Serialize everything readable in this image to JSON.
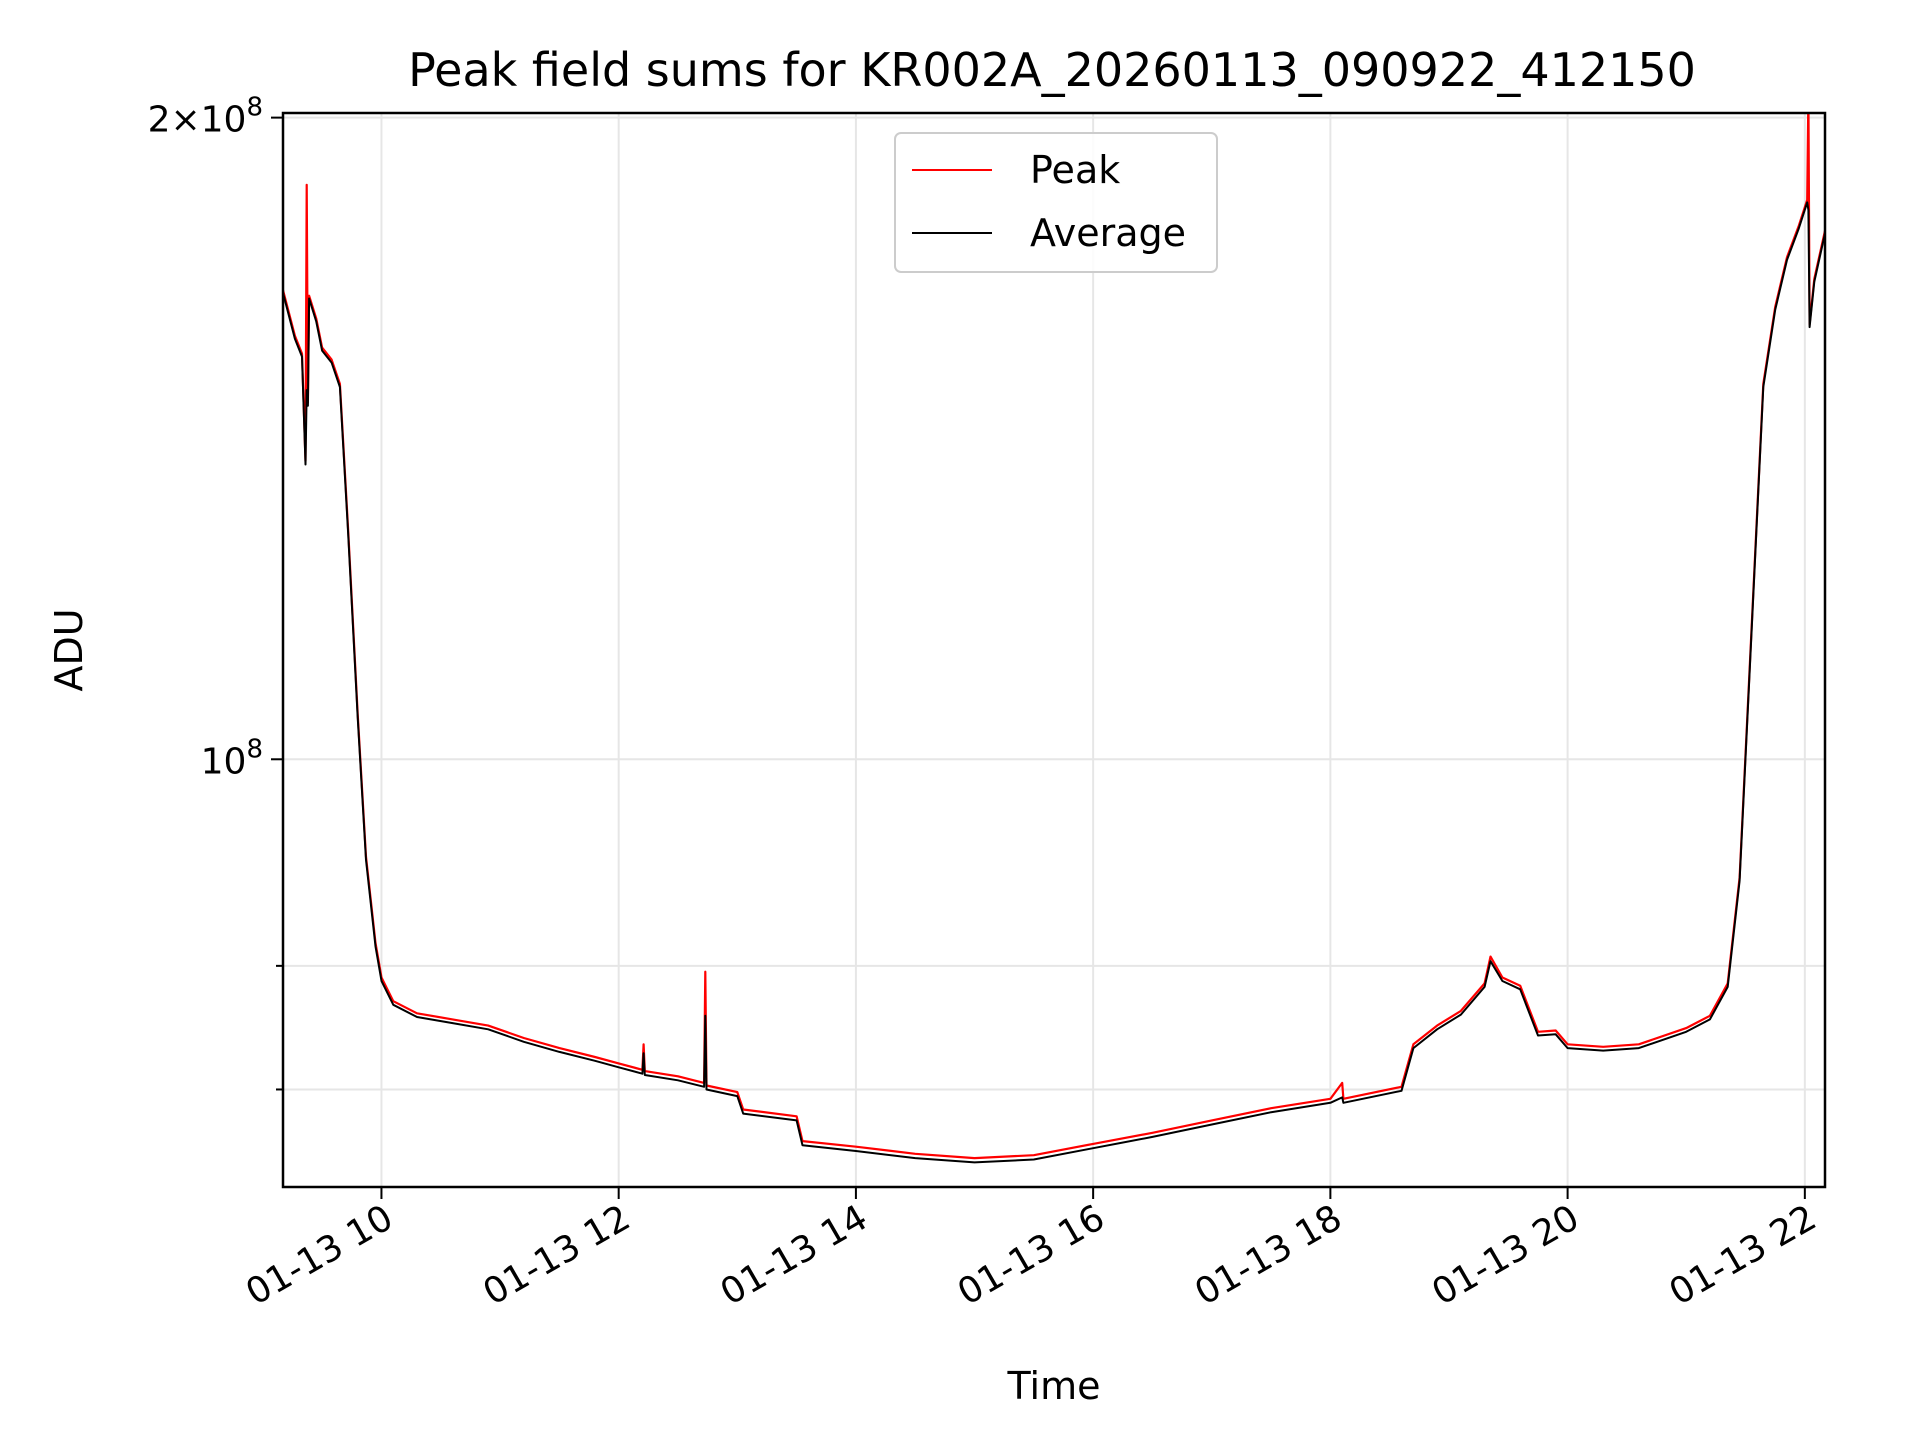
{
  "chart_data": {
    "type": "line",
    "title": "Peak field sums for KR002A_20260113_090922_412150",
    "xlabel": "Time",
    "ylabel": "ADU",
    "yscale": "log",
    "x_unit": "hours since 01-13 00:00",
    "xlim": [
      9.17,
      22.17
    ],
    "ylim": [
      63000000,
      201000000
    ],
    "x_ticks": [
      10,
      12,
      14,
      16,
      18,
      20,
      22
    ],
    "x_tick_labels": [
      "01-13 10",
      "01-13 12",
      "01-13 14",
      "01-13 16",
      "01-13 18",
      "01-13 20",
      "01-13 22"
    ],
    "y_major_ticks": [
      100000000,
      200000000
    ],
    "y_major_tick_labels": [
      "10^8",
      "2×10^8"
    ],
    "y_minor_ticks": [
      70000000,
      80000000
    ],
    "grid": true,
    "legend_position": "top-center",
    "series": [
      {
        "name": "Peak",
        "color": "#ff0000",
        "points": [
          [
            9.17,
            166000000
          ],
          [
            9.27,
            158000000
          ],
          [
            9.33,
            155000000
          ],
          [
            9.36,
            138000000
          ],
          [
            9.37,
            186000000
          ],
          [
            9.38,
            147000000
          ],
          [
            9.39,
            165000000
          ],
          [
            9.45,
            161000000
          ],
          [
            9.5,
            156000000
          ],
          [
            9.58,
            154000000
          ],
          [
            9.65,
            150000000
          ],
          [
            9.72,
            128000000
          ],
          [
            9.8,
            105000000
          ],
          [
            9.87,
            90000000
          ],
          [
            9.95,
            82000000
          ],
          [
            10.0,
            79000000
          ],
          [
            10.1,
            77000000
          ],
          [
            10.3,
            76000000
          ],
          [
            10.6,
            75500000
          ],
          [
            10.9,
            75000000
          ],
          [
            11.2,
            74000000
          ],
          [
            11.5,
            73200000
          ],
          [
            11.8,
            72500000
          ],
          [
            12.0,
            72000000
          ],
          [
            12.2,
            71500000
          ],
          [
            12.21,
            73500000
          ],
          [
            12.22,
            71400000
          ],
          [
            12.5,
            71000000
          ],
          [
            12.72,
            70500000
          ],
          [
            12.73,
            79500000
          ],
          [
            12.74,
            70300000
          ],
          [
            13.0,
            69800000
          ],
          [
            13.05,
            68500000
          ],
          [
            13.5,
            68000000
          ],
          [
            13.55,
            66200000
          ],
          [
            14.0,
            65800000
          ],
          [
            14.5,
            65300000
          ],
          [
            15.0,
            65000000
          ],
          [
            15.5,
            65200000
          ],
          [
            16.0,
            66000000
          ],
          [
            16.5,
            66800000
          ],
          [
            17.0,
            67700000
          ],
          [
            17.5,
            68600000
          ],
          [
            18.0,
            69300000
          ],
          [
            18.1,
            70500000
          ],
          [
            18.11,
            69300000
          ],
          [
            18.6,
            70200000
          ],
          [
            18.7,
            73500000
          ],
          [
            18.9,
            75000000
          ],
          [
            19.1,
            76200000
          ],
          [
            19.3,
            78500000
          ],
          [
            19.35,
            80800000
          ],
          [
            19.45,
            79000000
          ],
          [
            19.6,
            78300000
          ],
          [
            19.75,
            74500000
          ],
          [
            19.9,
            74600000
          ],
          [
            20.0,
            73500000
          ],
          [
            20.3,
            73300000
          ],
          [
            20.6,
            73500000
          ],
          [
            21.0,
            74800000
          ],
          [
            21.2,
            75800000
          ],
          [
            21.35,
            78500000
          ],
          [
            21.45,
            88000000
          ],
          [
            21.55,
            115000000
          ],
          [
            21.65,
            150000000
          ],
          [
            21.75,
            163000000
          ],
          [
            21.85,
            172000000
          ],
          [
            21.95,
            178000000
          ],
          [
            22.02,
            183000000
          ],
          [
            22.03,
            205000000
          ],
          [
            22.04,
            160000000
          ],
          [
            22.08,
            168000000
          ],
          [
            22.17,
            177000000
          ]
        ]
      },
      {
        "name": "Average",
        "color": "#000000",
        "points": [
          [
            9.17,
            165500000
          ],
          [
            9.27,
            157500000
          ],
          [
            9.33,
            154500000
          ],
          [
            9.36,
            137500000
          ],
          [
            9.37,
            149000000
          ],
          [
            9.38,
            146500000
          ],
          [
            9.39,
            164500000
          ],
          [
            9.45,
            160500000
          ],
          [
            9.5,
            155500000
          ],
          [
            9.58,
            153500000
          ],
          [
            9.65,
            149500000
          ],
          [
            9.72,
            127500000
          ],
          [
            9.8,
            104600000
          ],
          [
            9.87,
            89700000
          ],
          [
            9.95,
            81700000
          ],
          [
            10.0,
            78700000
          ],
          [
            10.1,
            76700000
          ],
          [
            10.3,
            75700000
          ],
          [
            10.6,
            75200000
          ],
          [
            10.9,
            74700000
          ],
          [
            11.2,
            73700000
          ],
          [
            11.5,
            72900000
          ],
          [
            11.8,
            72200000
          ],
          [
            12.0,
            71700000
          ],
          [
            12.2,
            71200000
          ],
          [
            12.21,
            72800000
          ],
          [
            12.22,
            71100000
          ],
          [
            12.5,
            70700000
          ],
          [
            12.72,
            70200000
          ],
          [
            12.73,
            75800000
          ],
          [
            12.74,
            70000000
          ],
          [
            13.0,
            69500000
          ],
          [
            13.05,
            68200000
          ],
          [
            13.5,
            67700000
          ],
          [
            13.55,
            65900000
          ],
          [
            14.0,
            65500000
          ],
          [
            14.5,
            65000000
          ],
          [
            15.0,
            64700000
          ],
          [
            15.5,
            64900000
          ],
          [
            16.0,
            65700000
          ],
          [
            16.5,
            66500000
          ],
          [
            17.0,
            67400000
          ],
          [
            17.5,
            68300000
          ],
          [
            18.0,
            69000000
          ],
          [
            18.1,
            69400000
          ],
          [
            18.11,
            69000000
          ],
          [
            18.6,
            69900000
          ],
          [
            18.7,
            73200000
          ],
          [
            18.9,
            74700000
          ],
          [
            19.1,
            75900000
          ],
          [
            19.3,
            78200000
          ],
          [
            19.35,
            80400000
          ],
          [
            19.45,
            78700000
          ],
          [
            19.6,
            78000000
          ],
          [
            19.75,
            74200000
          ],
          [
            19.9,
            74300000
          ],
          [
            20.0,
            73200000
          ],
          [
            20.3,
            73000000
          ],
          [
            20.6,
            73200000
          ],
          [
            21.0,
            74500000
          ],
          [
            21.2,
            75500000
          ],
          [
            21.35,
            78200000
          ],
          [
            21.45,
            87700000
          ],
          [
            21.55,
            114600000
          ],
          [
            21.65,
            149500000
          ],
          [
            21.75,
            162500000
          ],
          [
            21.85,
            171500000
          ],
          [
            21.95,
            177500000
          ],
          [
            22.02,
            182500000
          ],
          [
            22.03,
            181000000
          ],
          [
            22.04,
            159500000
          ],
          [
            22.08,
            167500000
          ],
          [
            22.17,
            176500000
          ]
        ]
      }
    ]
  }
}
